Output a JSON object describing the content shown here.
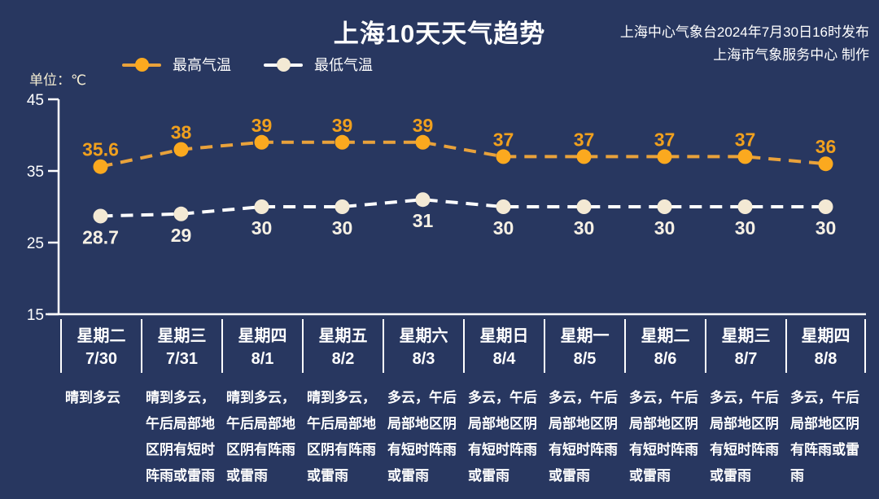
{
  "header": {
    "title": "上海10天天气趋势",
    "issued_line": "上海中心气象台2024年7月30日16时发布",
    "producer_line": "上海市气象服务中心 制作"
  },
  "unit_label": "单位：℃",
  "legend": {
    "max": {
      "label": "最高气温"
    },
    "min": {
      "label": "最低气温"
    }
  },
  "colors": {
    "background": "#283760",
    "axis": "#FFFFFF",
    "max_line": "#E9A23B",
    "max_dot": "#FBA91F",
    "max_label": "#F0A01E",
    "min_line": "#FFFFFF",
    "min_dot": "#F3E9D4",
    "min_label": "#F6F0E4",
    "unit_text": "#F5EDD2"
  },
  "chart_data": {
    "type": "line",
    "title": "上海10天天气趋势",
    "categories": [
      {
        "weekday": "星期二",
        "date": "7/30"
      },
      {
        "weekday": "星期三",
        "date": "7/31"
      },
      {
        "weekday": "星期四",
        "date": "8/1"
      },
      {
        "weekday": "星期五",
        "date": "8/2"
      },
      {
        "weekday": "星期六",
        "date": "8/3"
      },
      {
        "weekday": "星期日",
        "date": "8/4"
      },
      {
        "weekday": "星期一",
        "date": "8/5"
      },
      {
        "weekday": "星期二",
        "date": "8/6"
      },
      {
        "weekday": "星期三",
        "date": "8/7"
      },
      {
        "weekday": "星期四",
        "date": "8/8"
      }
    ],
    "series": [
      {
        "name": "最高气温",
        "values": [
          35.6,
          38,
          39,
          39,
          39,
          37,
          37,
          37,
          37,
          36
        ]
      },
      {
        "name": "最低气温",
        "values": [
          28.7,
          29,
          30,
          30,
          31,
          30,
          30,
          30,
          30,
          30
        ]
      }
    ],
    "weather_text": [
      "晴到多云",
      "晴到多云，午后局部地区阴有短时阵雨或雷雨",
      "晴到多云，午后局部地区阴有阵雨或雷雨",
      "晴到多云，午后局部地区阴有阵雨或雷雨",
      "多云，午后局部地区阴有短时阵雨或雷雨",
      "多云，午后局部地区阴有短时阵雨或雷雨",
      "多云，午后局部地区阴有短时阵雨或雷雨",
      "多云，午后局部地区阴有短时阵雨或雷雨",
      "多云，午后局部地区阴有短时阵雨或雷雨",
      "多云，午后局部地区阴有阵雨或雷雨"
    ],
    "ylabel": "单位：℃",
    "yticks": [
      45,
      35,
      25,
      15
    ],
    "ylim": [
      15,
      45
    ],
    "grid": false,
    "legend_position": "top-left",
    "line_style": "dashed"
  }
}
